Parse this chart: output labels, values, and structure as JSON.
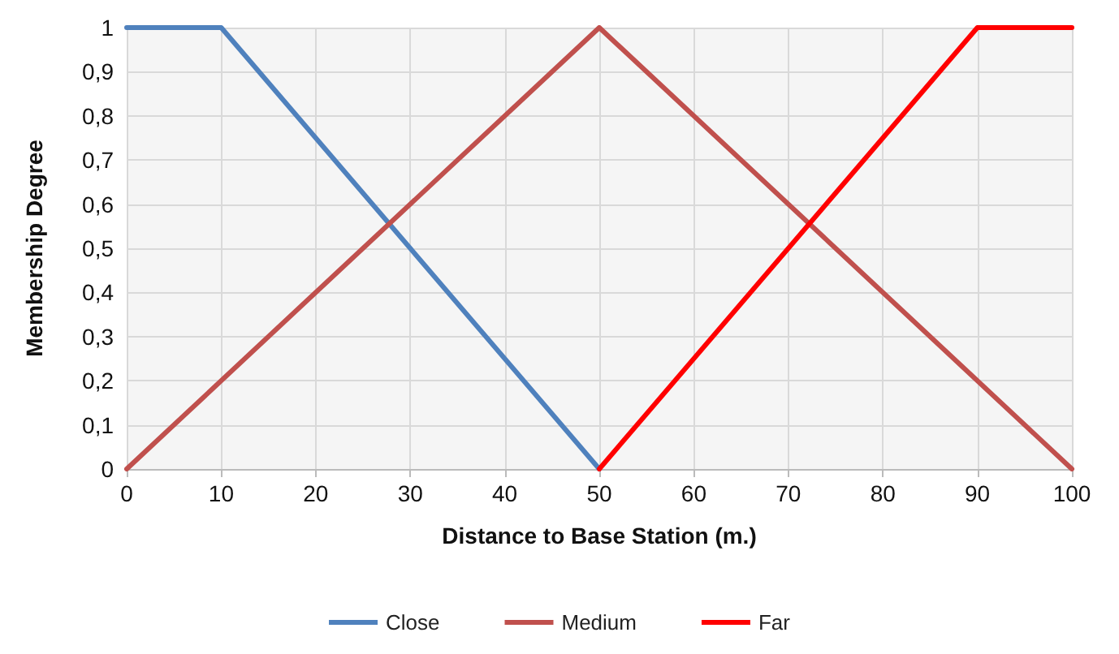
{
  "chart_data": {
    "type": "line",
    "xlabel": "Distance to Base Station (m.)",
    "ylabel": "Membership Degree",
    "series": [
      {
        "name": "Close",
        "color": "#4f81bd",
        "x": [
          0,
          10,
          50
        ],
        "values": [
          1,
          1,
          0
        ]
      },
      {
        "name": "Medium",
        "color": "#c0504d",
        "x": [
          0,
          50,
          100
        ],
        "values": [
          0,
          1,
          0
        ]
      },
      {
        "name": "Far",
        "color": "#ff0000",
        "x": [
          50,
          90,
          100
        ],
        "values": [
          0,
          1,
          1
        ]
      }
    ],
    "xlim": [
      0,
      100
    ],
    "xticks": [
      0,
      10,
      20,
      30,
      40,
      50,
      60,
      70,
      80,
      90,
      100
    ],
    "ylim": [
      0,
      1
    ],
    "yticks": [
      0,
      {
        "value": 0.1,
        "label": "0,1"
      },
      {
        "value": 0.2,
        "label": "0,2"
      },
      {
        "value": 0.3,
        "label": "0,3"
      },
      {
        "value": 0.4,
        "label": "0,4"
      },
      {
        "value": 0.5,
        "label": "0,5"
      },
      {
        "value": 0.6,
        "label": "0,6"
      },
      {
        "value": 0.7,
        "label": "0,7"
      },
      {
        "value": 0.8,
        "label": "0,8"
      },
      {
        "value": 0.9,
        "label": "0,9"
      },
      1
    ],
    "grid": true,
    "legend": "bottom",
    "marker": "none",
    "line_style": "solid"
  }
}
